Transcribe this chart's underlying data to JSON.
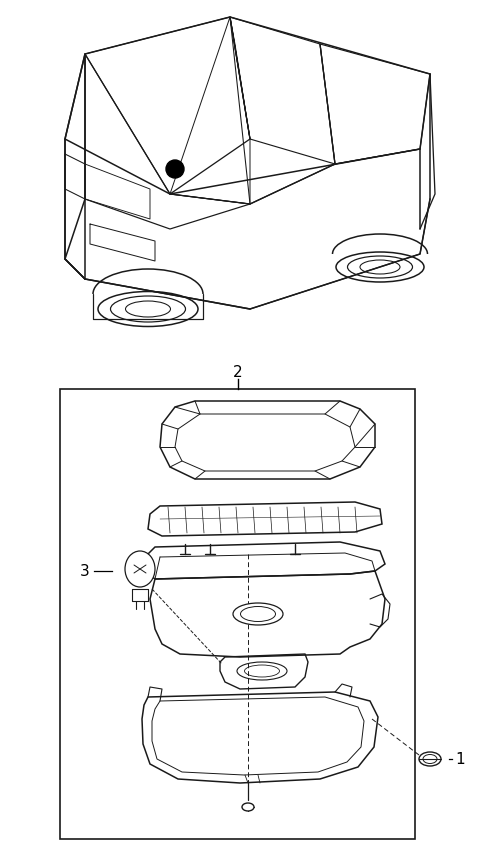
{
  "bg_color": "#ffffff",
  "line_color": "#1a1a1a",
  "figure_size": [
    4.8,
    8.54
  ],
  "dpi": 100,
  "label_1": "1",
  "label_2": "2",
  "label_3": "3"
}
